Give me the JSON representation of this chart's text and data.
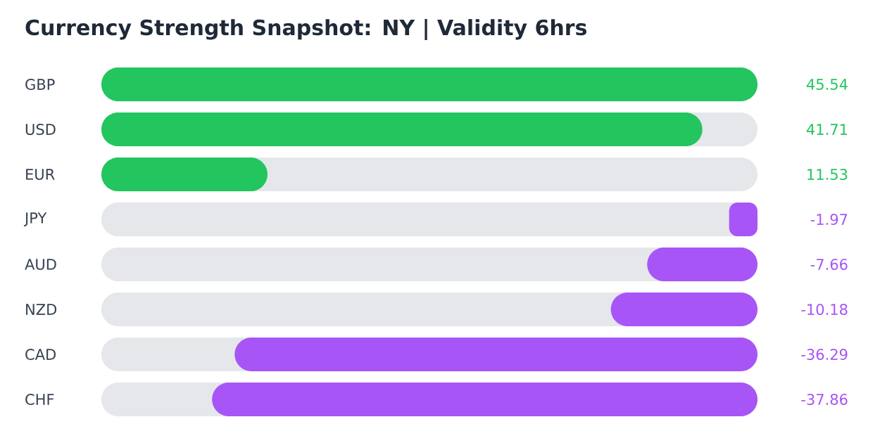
{
  "chart_data": [
    {
      "type": "bar",
      "orientation": "horizontal",
      "title": "Currency Strength Snapshot: NY | Validity 6hrs",
      "categories": [
        "GBP",
        "USD",
        "EUR"
      ],
      "values": [
        45.54,
        41.71,
        11.53
      ],
      "colors": [
        "#22c55e",
        "#22c55e",
        "#22c55e"
      ],
      "data_labels": true
    },
    {
      "type": "bar",
      "orientation": "horizontal",
      "categories": [
        "JPY",
        "AUD",
        "NZD",
        "CAD",
        "CHF"
      ],
      "values": [
        -1.97,
        -7.66,
        -10.18,
        -36.29,
        -37.86
      ],
      "colors": [
        "#a855f7",
        "#a855f7",
        "#a855f7",
        "#a855f7",
        "#a855f7"
      ],
      "data_labels": true
    }
  ]
}
